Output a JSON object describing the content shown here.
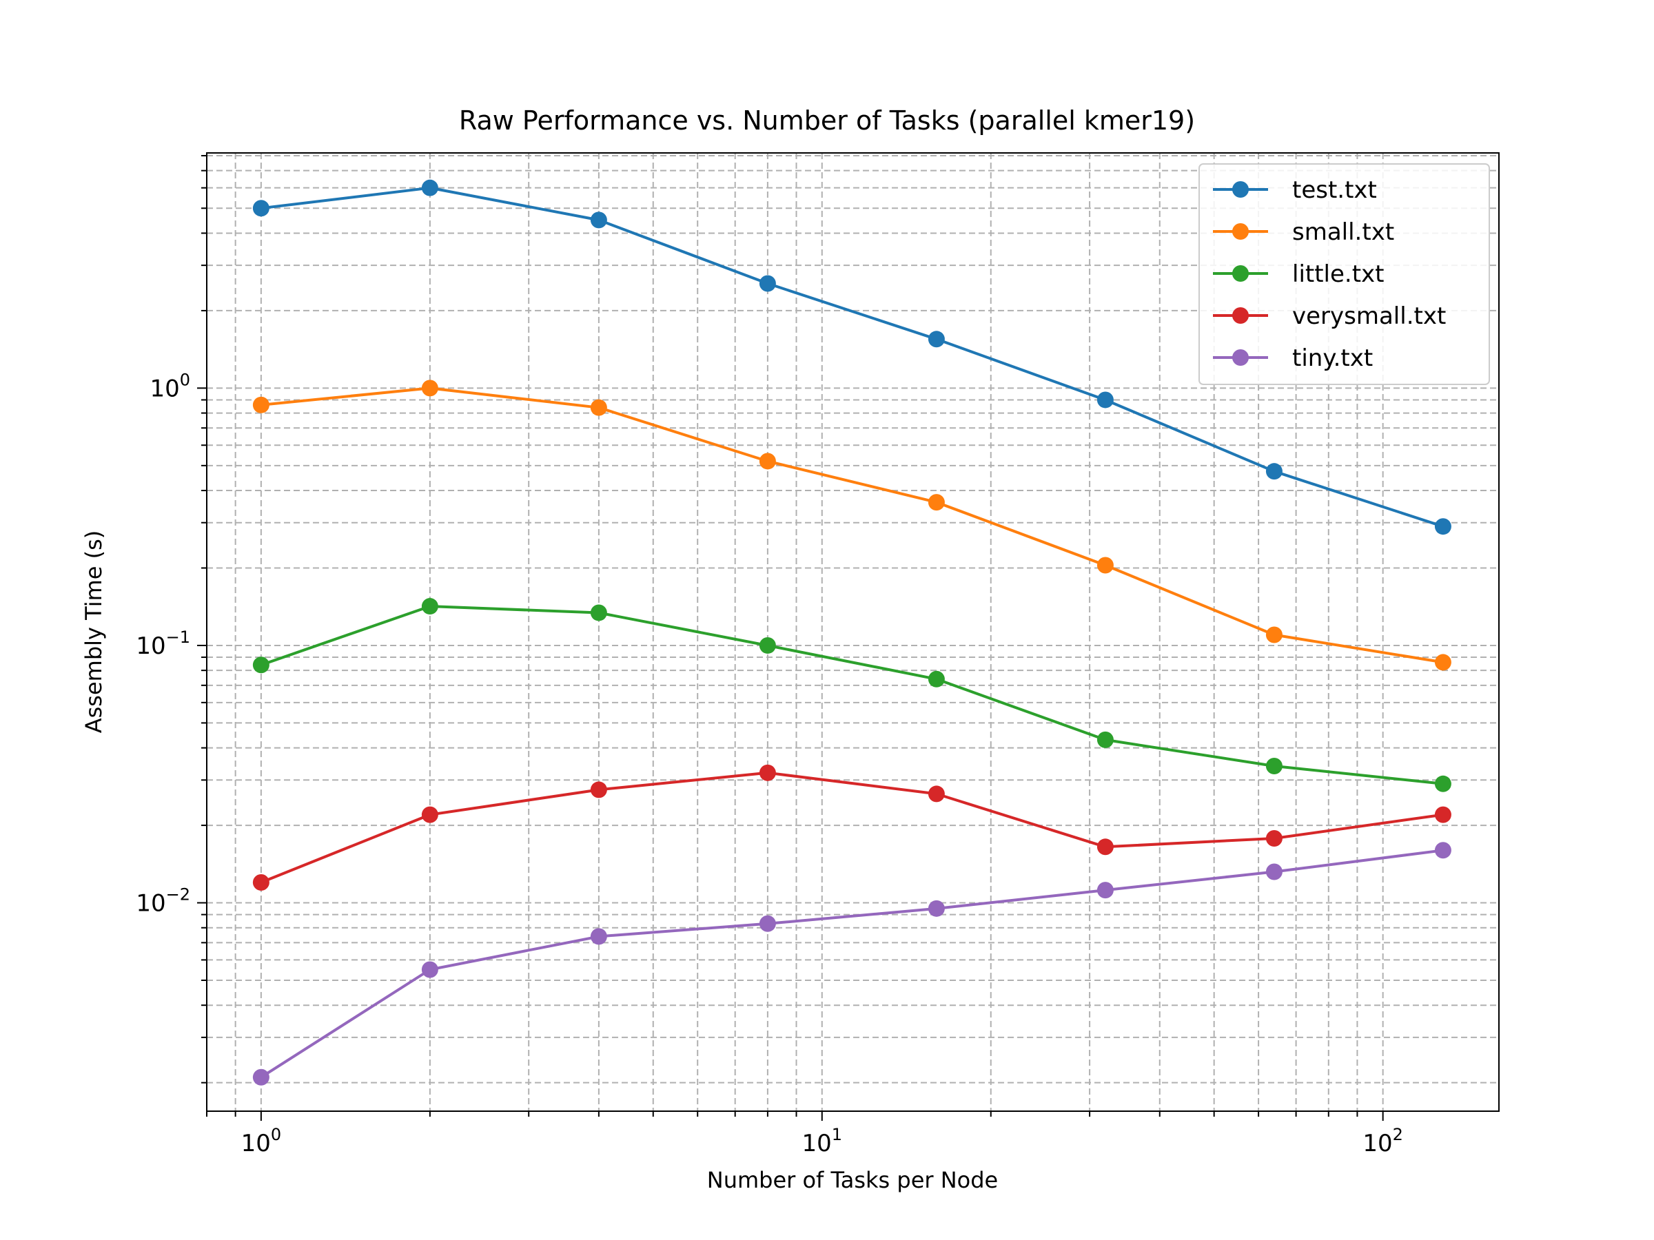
{
  "chart_data": {
    "type": "line",
    "title": "Raw Performance vs. Number of Tasks (parallel kmer19)",
    "xlabel": "Number of Tasks per Node",
    "ylabel": "Assembly Time (s)",
    "xscale": "log",
    "yscale": "log",
    "xlim": [
      0.8,
      161
    ],
    "ylim": [
      0.00155,
      8.2
    ],
    "grid": "both (major and minor), dashed",
    "legend_position": "top-right",
    "x_ticks": [
      {
        "value": 1,
        "base": "10",
        "exp": "0"
      },
      {
        "value": 10,
        "base": "10",
        "exp": "1"
      },
      {
        "value": 100,
        "base": "10",
        "exp": "2"
      }
    ],
    "y_ticks": [
      {
        "value": 0.01,
        "base": "10",
        "exp": "−2"
      },
      {
        "value": 0.1,
        "base": "10",
        "exp": "−1"
      },
      {
        "value": 1,
        "base": "10",
        "exp": "0"
      }
    ],
    "x": [
      1,
      2,
      4,
      8,
      16,
      32,
      64,
      128
    ],
    "series": [
      {
        "name": "test.txt",
        "color": "#1f77b4",
        "values": [
          5.0,
          6.0,
          4.5,
          2.55,
          1.55,
          0.9,
          0.475,
          0.29
        ]
      },
      {
        "name": "small.txt",
        "color": "#ff7f0e",
        "values": [
          0.86,
          1.0,
          0.84,
          0.52,
          0.36,
          0.205,
          0.11,
          0.086
        ]
      },
      {
        "name": "little.txt",
        "color": "#2ca02c",
        "values": [
          0.084,
          0.142,
          0.134,
          0.1,
          0.074,
          0.043,
          0.034,
          0.029
        ]
      },
      {
        "name": "verysmall.txt",
        "color": "#d62728",
        "values": [
          0.012,
          0.022,
          0.0275,
          0.032,
          0.0265,
          0.0165,
          0.0178,
          0.022
        ]
      },
      {
        "name": "tiny.txt",
        "color": "#9467bd",
        "values": [
          0.0021,
          0.0055,
          0.0074,
          0.0083,
          0.0095,
          0.0112,
          0.0132,
          0.016
        ]
      }
    ]
  }
}
